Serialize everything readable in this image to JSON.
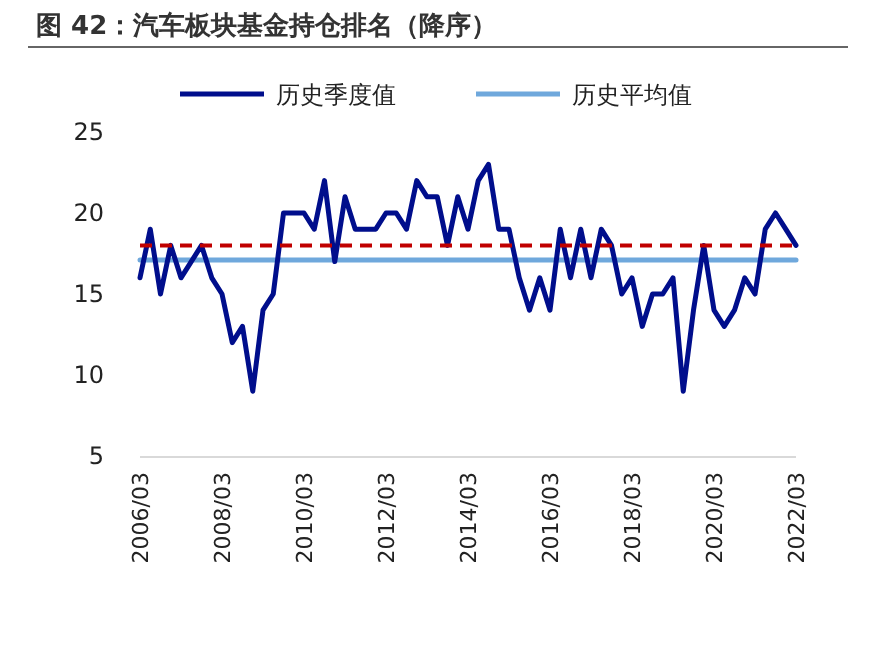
{
  "chart_data": {
    "type": "line",
    "title": "图 42：汽车板块基金持仓排名（降序）",
    "categories": [
      "2006/03",
      null,
      null,
      null,
      null,
      null,
      null,
      null,
      "2008/03",
      null,
      null,
      null,
      null,
      null,
      null,
      null,
      "2010/03",
      null,
      null,
      null,
      null,
      null,
      null,
      null,
      "2012/03",
      null,
      null,
      null,
      null,
      null,
      null,
      null,
      "2014/03",
      null,
      null,
      null,
      null,
      null,
      null,
      null,
      "2016/03",
      null,
      null,
      null,
      null,
      null,
      null,
      null,
      "2018/03",
      null,
      null,
      null,
      null,
      null,
      null,
      null,
      "2020/03",
      null,
      null,
      null,
      null,
      null,
      null,
      null,
      "2022/03"
    ],
    "series": [
      {
        "name": "历史季度值",
        "color": "#000e8c",
        "values": [
          16,
          19,
          15,
          18,
          16,
          17,
          18,
          16,
          15,
          12,
          13,
          9,
          14,
          15,
          20,
          20,
          20,
          19,
          22,
          17,
          21,
          19,
          19,
          19,
          20,
          20,
          19,
          22,
          21,
          21,
          18,
          21,
          19,
          22,
          23,
          19,
          19,
          16,
          14,
          16,
          14,
          19,
          16,
          19,
          16,
          19,
          18,
          15,
          16,
          13,
          15,
          15,
          16,
          9,
          14,
          18,
          14,
          13,
          14,
          16,
          15,
          19,
          20,
          19,
          18
        ]
      },
      {
        "name": "历史平均值",
        "color": "#6fa8dc",
        "values": [
          17.1,
          17.1,
          17.1,
          17.1,
          17.1,
          17.1,
          17.1,
          17.1,
          17.1,
          17.1,
          17.1,
          17.1,
          17.1,
          17.1,
          17.1,
          17.1,
          17.1,
          17.1,
          17.1,
          17.1,
          17.1,
          17.1,
          17.1,
          17.1,
          17.1,
          17.1,
          17.1,
          17.1,
          17.1,
          17.1,
          17.1,
          17.1,
          17.1,
          17.1,
          17.1,
          17.1,
          17.1,
          17.1,
          17.1,
          17.1,
          17.1,
          17.1,
          17.1,
          17.1,
          17.1,
          17.1,
          17.1,
          17.1,
          17.1,
          17.1,
          17.1,
          17.1,
          17.1,
          17.1,
          17.1,
          17.1,
          17.1,
          17.1,
          17.1,
          17.1,
          17.1,
          17.1,
          17.1,
          17.1,
          17.1
        ]
      }
    ],
    "ref_lines": [
      {
        "axis": "y",
        "value": 18,
        "color": "#c00000",
        "line_style": "dashed"
      }
    ],
    "ylim": [
      5,
      25
    ],
    "yticks": [
      5,
      10,
      15,
      20,
      25
    ],
    "grid": false,
    "legend": "top",
    "marker": "none",
    "line_style": "solid"
  }
}
